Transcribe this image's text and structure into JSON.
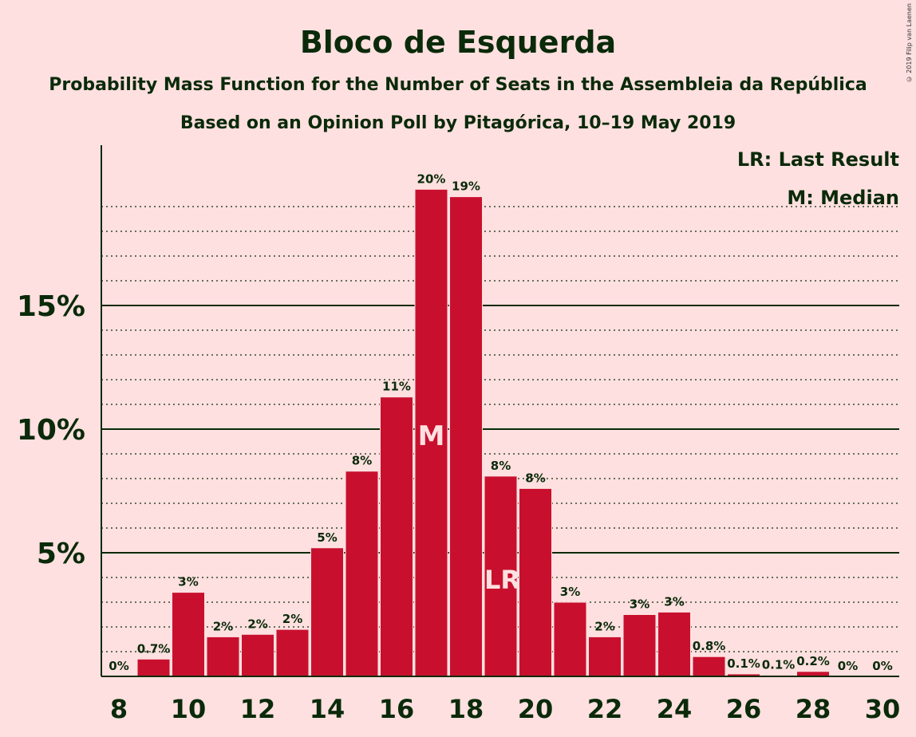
{
  "chart_data": {
    "type": "bar",
    "title": "Bloco de Esquerda",
    "subtitle": "Probability Mass Function for the Number of Seats in the Assembleia da República",
    "subtitle2": "Based on an Opinion Poll by Pitagórica, 10–19 May 2019",
    "copyright": "© 2019 Filip van Laenen",
    "legend": [
      "LR: Last Result",
      "M: Median"
    ],
    "legend_position": "top-right",
    "xlabel": "",
    "ylabel": "",
    "ylim": [
      0,
      21.5
    ],
    "yticks": [
      5,
      10,
      15
    ],
    "ytick_labels": [
      "5%",
      "10%",
      "15%"
    ],
    "xtick_values": [
      8,
      10,
      12,
      14,
      16,
      18,
      20,
      22,
      24,
      26,
      28,
      30
    ],
    "xtick_labels": [
      "8",
      "10",
      "12",
      "14",
      "16",
      "18",
      "20",
      "22",
      "24",
      "26",
      "28",
      "30"
    ],
    "grid": "dotted at each 1%, solid at 5%",
    "bar_color": "#c8102e",
    "median_seat": 17,
    "median_marker": "M",
    "last_result_seat": 19,
    "last_result_marker": "LR",
    "seats": [
      8,
      9,
      10,
      11,
      12,
      13,
      14,
      15,
      16,
      17,
      18,
      19,
      20,
      21,
      22,
      23,
      24,
      25,
      26,
      27,
      28,
      29,
      30
    ],
    "values": [
      0,
      0.7,
      3.4,
      1.6,
      1.7,
      1.9,
      5.2,
      8.3,
      11.3,
      19.7,
      19.4,
      8.1,
      7.6,
      3.0,
      1.6,
      2.5,
      2.6,
      0.8,
      0.1,
      0.05,
      0.2,
      0,
      0
    ],
    "value_labels": [
      "0%",
      "0.7%",
      "3%",
      "2%",
      "2%",
      "2%",
      "5%",
      "8%",
      "11%",
      "20%",
      "19%",
      "8%",
      "8%",
      "3%",
      "2%",
      "3%",
      "3%",
      "0.8%",
      "0.1%",
      "0.1%",
      "0.2%",
      "0%",
      "0%"
    ]
  }
}
